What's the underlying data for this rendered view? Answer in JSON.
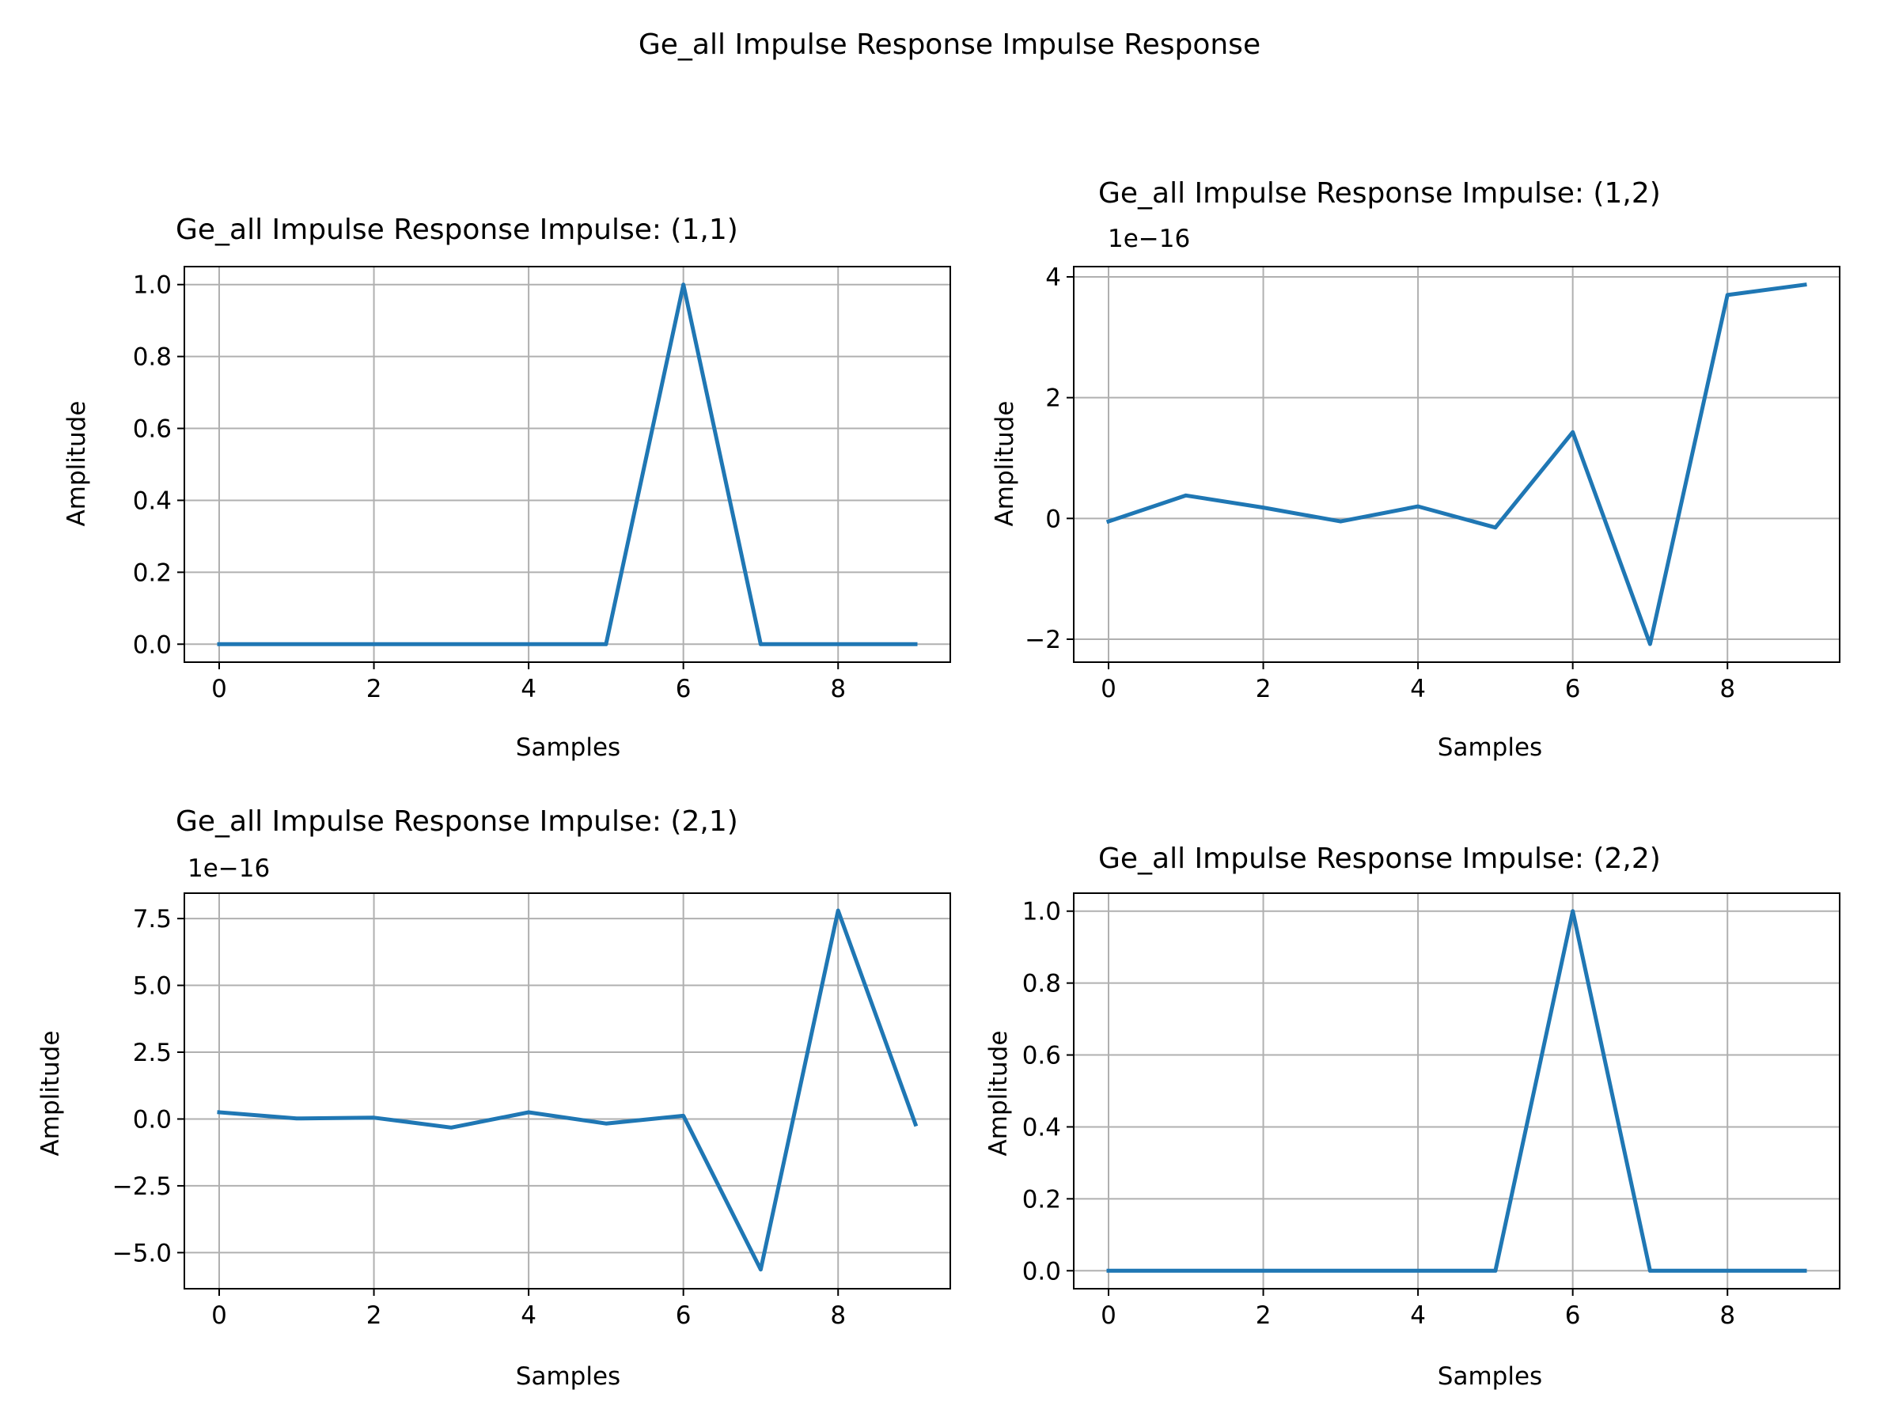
{
  "figure": {
    "suptitle": "Ge_all Impulse Response Impulse Response",
    "line_color": "#1f77b4"
  },
  "chart_data": [
    {
      "type": "line",
      "title": "Ge_all Impulse Response Impulse: (1,1)",
      "xlabel": "Samples",
      "ylabel": "Amplitude",
      "offset_text": "",
      "scale": 1,
      "x": [
        0,
        1,
        2,
        3,
        4,
        5,
        6,
        7,
        8,
        9
      ],
      "y": [
        0,
        0,
        0,
        0,
        0,
        0,
        1.0,
        0,
        0,
        0
      ],
      "xlim": [
        -0.45,
        9.45
      ],
      "ylim": [
        -0.05,
        1.05
      ],
      "xticks": [
        0,
        2,
        4,
        6,
        8
      ],
      "xtick_labels": [
        "0",
        "2",
        "4",
        "6",
        "8"
      ],
      "yticks": [
        0,
        0.2,
        0.4,
        0.6,
        0.8,
        1.0
      ],
      "ytick_labels": [
        "0.0",
        "0.2",
        "0.4",
        "0.6",
        "0.8",
        "1.0"
      ],
      "grid": true
    },
    {
      "type": "line",
      "title": "Ge_all Impulse Response Impulse: (1,2)",
      "xlabel": "Samples",
      "ylabel": "Amplitude",
      "offset_text": "1e−16",
      "scale": 1e-16,
      "x": [
        0,
        1,
        2,
        3,
        4,
        5,
        6,
        7,
        8,
        9
      ],
      "y": [
        -5e-18,
        3.8e-17,
        1.8e-17,
        -5e-18,
        2e-17,
        -1.5e-17,
        1.43e-16,
        -2.08e-16,
        3.7e-16,
        3.87e-16
      ],
      "xlim": [
        -0.45,
        9.45
      ],
      "ylim": [
        -2.38e-16,
        4.17e-16
      ],
      "xticks": [
        0,
        2,
        4,
        6,
        8
      ],
      "xtick_labels": [
        "0",
        "2",
        "4",
        "6",
        "8"
      ],
      "yticks": [
        -2e-16,
        0,
        2e-16,
        4e-16
      ],
      "ytick_labels": [
        "−2",
        "0",
        "2",
        "4"
      ],
      "grid": true
    },
    {
      "type": "line",
      "title": "Ge_all Impulse Response Impulse: (2,1)",
      "xlabel": "Samples",
      "ylabel": "Amplitude",
      "offset_text": "1e−16",
      "scale": 1e-16,
      "x": [
        0,
        1,
        2,
        3,
        4,
        5,
        6,
        7,
        8,
        9
      ],
      "y": [
        2.5e-17,
        2e-18,
        5e-18,
        -3.2e-17,
        2.5e-17,
        -1.7e-17,
        1.2e-17,
        -5.63e-16,
        7.8e-16,
        -2e-17
      ],
      "xlim": [
        -0.45,
        9.45
      ],
      "ylim": [
        -6.35e-16,
        8.45e-16
      ],
      "xticks": [
        0,
        2,
        4,
        6,
        8
      ],
      "xtick_labels": [
        "0",
        "2",
        "4",
        "6",
        "8"
      ],
      "yticks": [
        -5e-16,
        -2.5e-16,
        0,
        2.5e-16,
        5e-16,
        7.5e-16
      ],
      "ytick_labels": [
        "−5.0",
        "−2.5",
        "0.0",
        "2.5",
        "5.0",
        "7.5"
      ],
      "grid": true
    },
    {
      "type": "line",
      "title": "Ge_all Impulse Response Impulse: (2,2)",
      "xlabel": "Samples",
      "ylabel": "Amplitude",
      "offset_text": "",
      "scale": 1,
      "x": [
        0,
        1,
        2,
        3,
        4,
        5,
        6,
        7,
        8,
        9
      ],
      "y": [
        0,
        0,
        0,
        0,
        0,
        0,
        1.0,
        0,
        0,
        0
      ],
      "xlim": [
        -0.45,
        9.45
      ],
      "ylim": [
        -0.05,
        1.05
      ],
      "xticks": [
        0,
        2,
        4,
        6,
        8
      ],
      "xtick_labels": [
        "0",
        "2",
        "4",
        "6",
        "8"
      ],
      "yticks": [
        0,
        0.2,
        0.4,
        0.6,
        0.8,
        1.0
      ],
      "ytick_labels": [
        "0.0",
        "0.2",
        "0.4",
        "0.6",
        "0.8",
        "1.0"
      ],
      "grid": true
    }
  ]
}
